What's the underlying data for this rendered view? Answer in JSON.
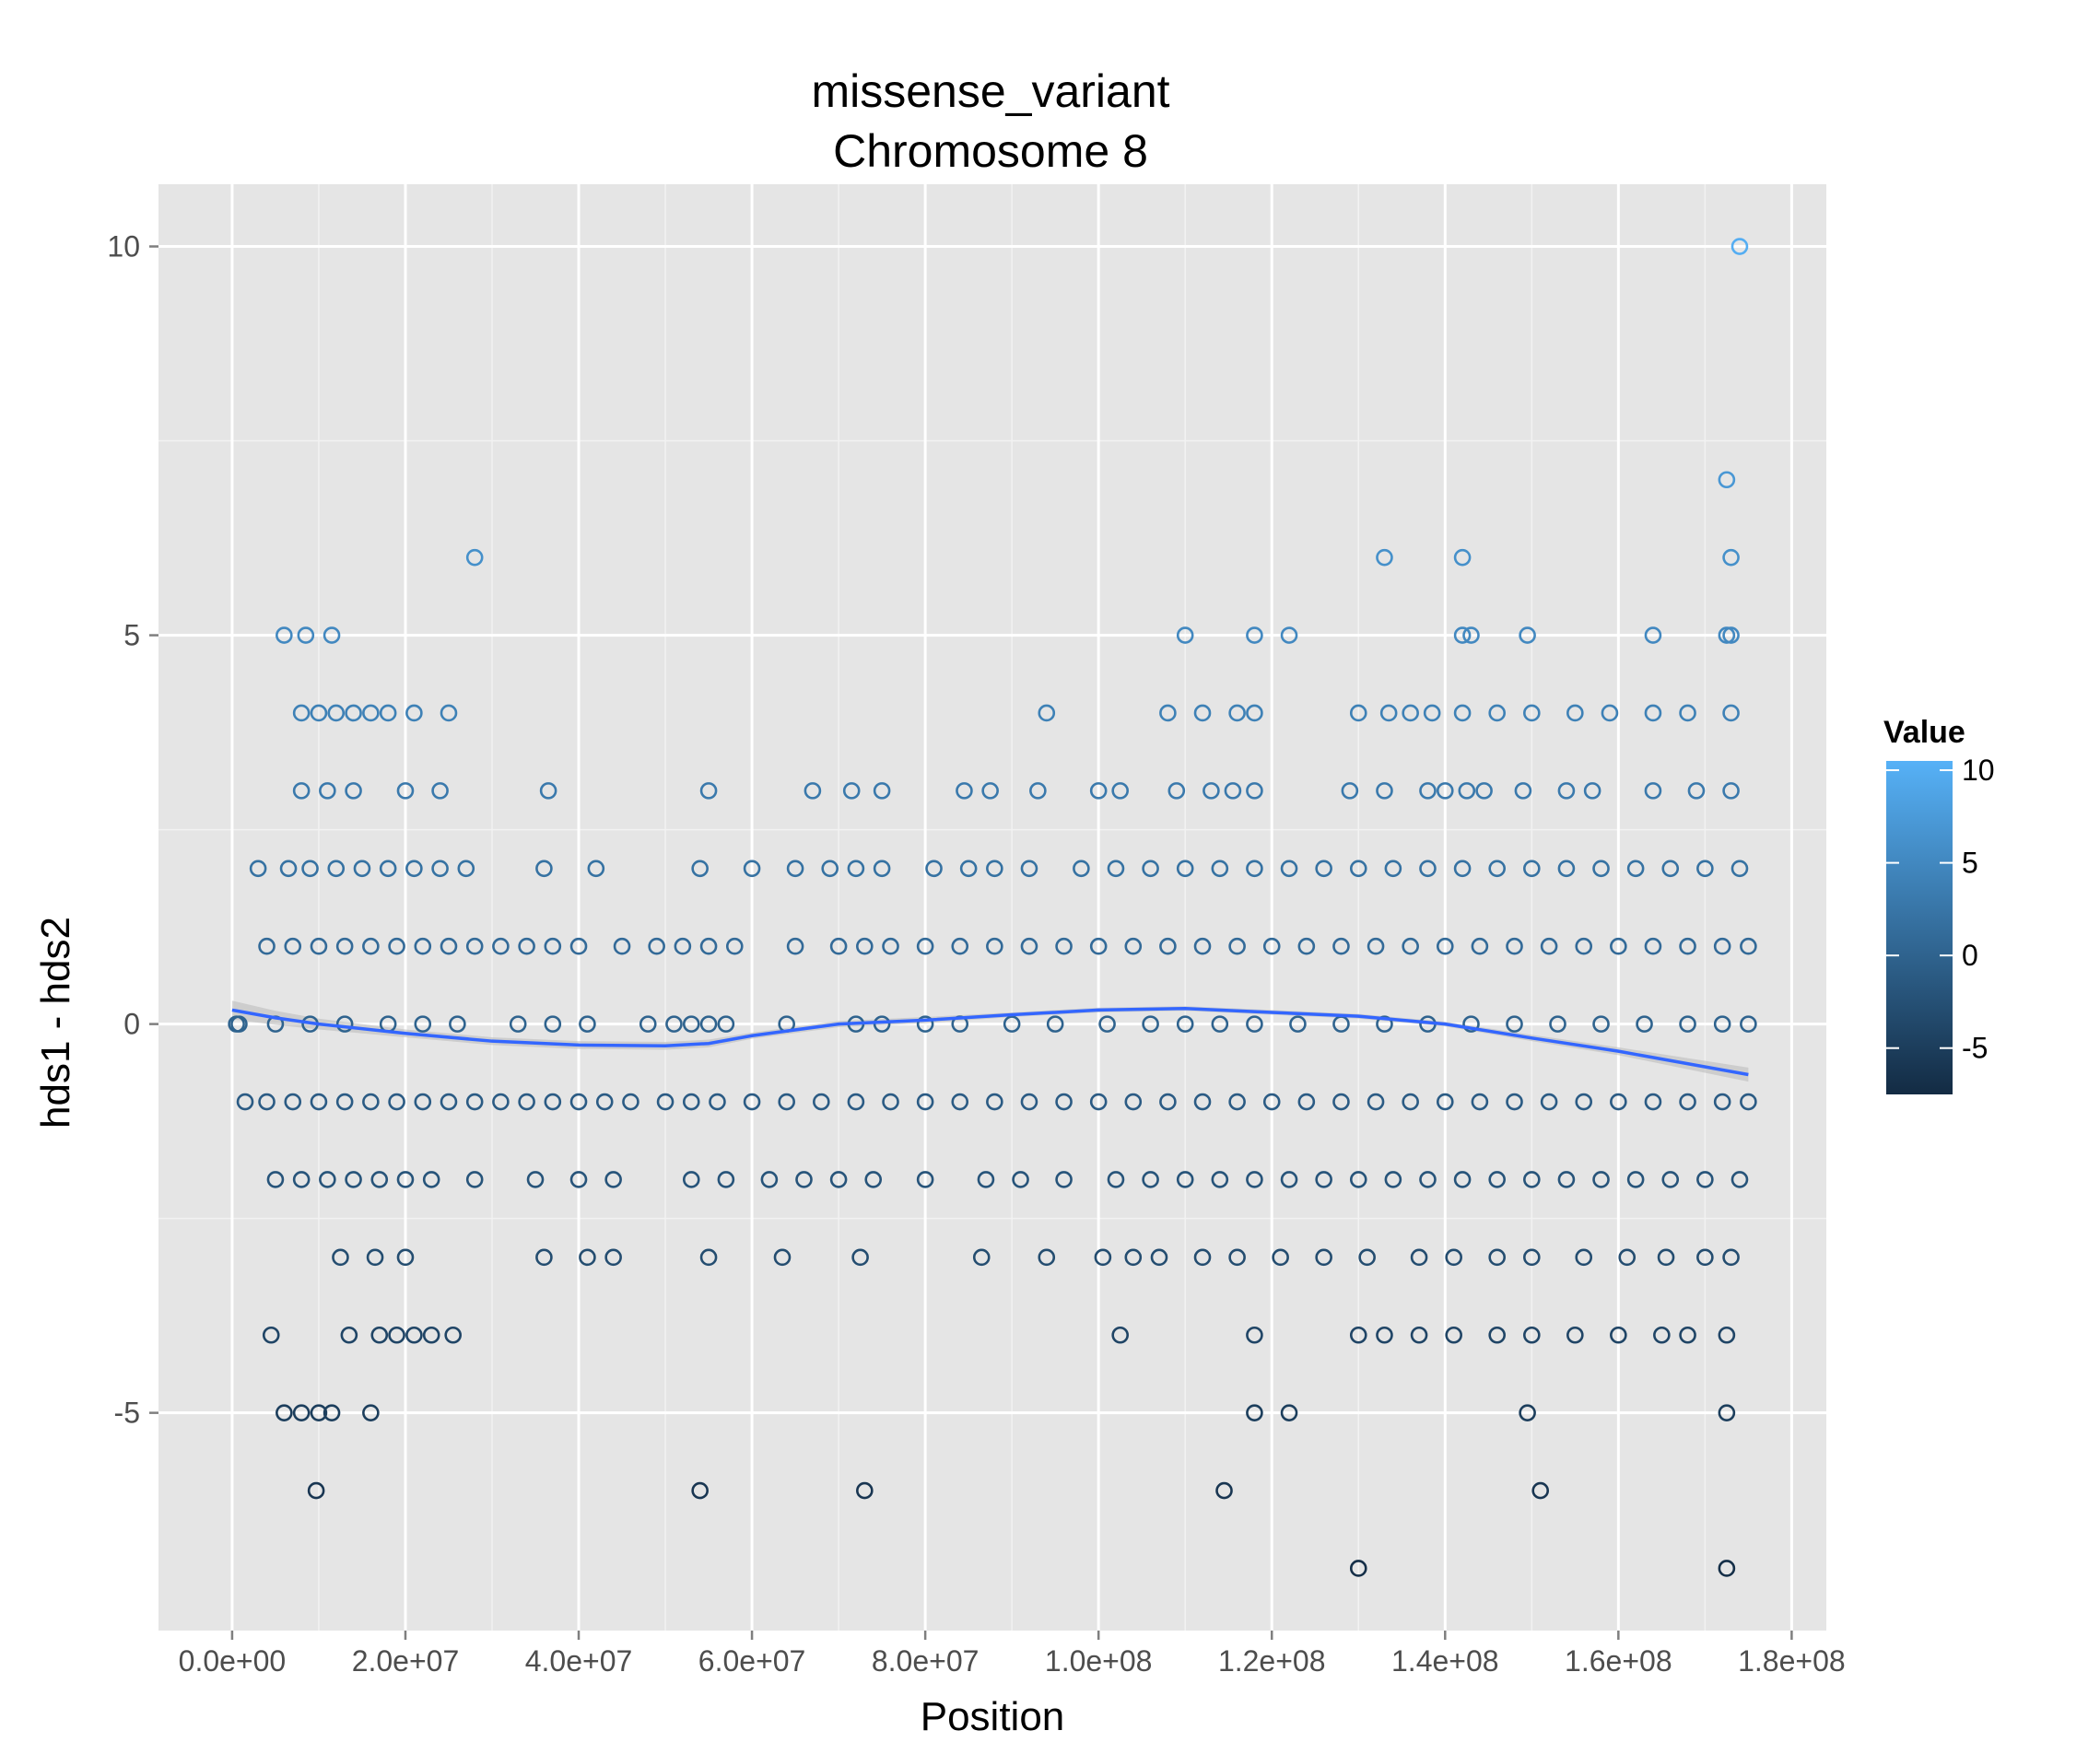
{
  "chart_data": {
    "type": "scatter",
    "title": "missense_variant",
    "subtitle": "Chromosome 8",
    "xlabel": "Position",
    "ylabel": "hds1 - hds2",
    "xlim": [
      -8500000,
      184000000
    ],
    "ylim": [
      -7.8,
      10.8
    ],
    "x_ticks": [
      0,
      20000000,
      40000000,
      60000000,
      80000000,
      100000000,
      120000000,
      140000000,
      160000000,
      180000000
    ],
    "x_tick_labels": [
      "0.0e+00",
      "2.0e+07",
      "4.0e+07",
      "6.0e+07",
      "8.0e+07",
      "1.0e+08",
      "1.2e+08",
      "1.4e+08",
      "1.6e+08",
      "1.8e+08"
    ],
    "y_ticks": [
      -5,
      0,
      5,
      10
    ],
    "y_tick_labels": [
      "-5",
      "0",
      "5",
      "10"
    ],
    "grid": true,
    "background": "#e5e5e5",
    "colors": {
      "low": "#132b43",
      "high": "#56b1f7",
      "smooth": "#3366ff",
      "ribbon": "#bdbdbd"
    },
    "legend": {
      "title": "Value",
      "position": "right",
      "range": [
        -7.5,
        10.5
      ],
      "breaks": [
        10,
        5,
        0,
        -5
      ],
      "labels": [
        "10",
        "5",
        "0",
        "-5"
      ]
    },
    "smooth": {
      "x": [
        0,
        5000000,
        10000000,
        20000000,
        30000000,
        40000000,
        50000000,
        55000000,
        60000000,
        70000000,
        80000000,
        90000000,
        100000000,
        110000000,
        120000000,
        130000000,
        140000000,
        150000000,
        160000000,
        175000000
      ],
      "y": [
        0.18,
        0.08,
        0.0,
        -0.12,
        -0.22,
        -0.27,
        -0.28,
        -0.25,
        -0.15,
        0.0,
        0.05,
        0.12,
        0.18,
        0.2,
        0.15,
        0.1,
        0.0,
        -0.18,
        -0.35,
        -0.65
      ],
      "se": [
        0.12,
        0.09,
        0.07,
        0.05,
        0.05,
        0.05,
        0.05,
        0.05,
        0.04,
        0.04,
        0.04,
        0.03,
        0.03,
        0.03,
        0.03,
        0.03,
        0.03,
        0.04,
        0.05,
        0.09
      ]
    },
    "series": [
      {
        "x": [
          500000,
          800000,
          5000000,
          9000000,
          13000000,
          18000000,
          22000000,
          26000000,
          33000000,
          37000000,
          41000000,
          48000000,
          51000000,
          53000000,
          55000000,
          57000000,
          64000000,
          72000000,
          75000000,
          80000000,
          84000000,
          90000000,
          95000000,
          101000000,
          106000000,
          110000000,
          114000000,
          118000000,
          123000000,
          128000000,
          133000000,
          138000000,
          143000000,
          148000000,
          153000000,
          158000000,
          163000000,
          168000000,
          172000000,
          175000000
        ],
        "y": [
          0,
          0,
          0,
          0,
          0,
          0,
          0,
          0,
          0,
          0,
          0,
          0,
          0,
          0,
          0,
          0,
          0,
          0,
          0,
          0,
          0,
          0,
          0,
          0,
          0,
          0,
          0,
          0,
          0,
          0,
          0,
          0,
          0,
          0,
          0,
          0,
          0,
          0,
          0,
          0
        ]
      },
      {
        "x": [
          4000000,
          7000000,
          10000000,
          13000000,
          16000000,
          19000000,
          22000000,
          25000000,
          28000000,
          31000000,
          34000000,
          37000000,
          40000000,
          45000000,
          49000000,
          52000000,
          55000000,
          58000000,
          65000000,
          70000000,
          73000000,
          76000000,
          80000000,
          84000000,
          88000000,
          92000000,
          96000000,
          100000000,
          104000000,
          108000000,
          112000000,
          116000000,
          120000000,
          124000000,
          128000000,
          132000000,
          136000000,
          140000000,
          144000000,
          148000000,
          152000000,
          156000000,
          160000000,
          164000000,
          168000000,
          172000000,
          175000000
        ],
        "y": [
          1,
          1,
          1,
          1,
          1,
          1,
          1,
          1,
          1,
          1,
          1,
          1,
          1,
          1,
          1,
          1,
          1,
          1,
          1,
          1,
          1,
          1,
          1,
          1,
          1,
          1,
          1,
          1,
          1,
          1,
          1,
          1,
          1,
          1,
          1,
          1,
          1,
          1,
          1,
          1,
          1,
          1,
          1,
          1,
          1,
          1,
          1
        ]
      },
      {
        "x": [
          1500000,
          4000000,
          7000000,
          10000000,
          13000000,
          16000000,
          19000000,
          22000000,
          25000000,
          28000000,
          31000000,
          34000000,
          37000000,
          40000000,
          43000000,
          46000000,
          50000000,
          53000000,
          56000000,
          60000000,
          64000000,
          68000000,
          72000000,
          76000000,
          80000000,
          84000000,
          88000000,
          92000000,
          96000000,
          100000000,
          104000000,
          108000000,
          112000000,
          116000000,
          120000000,
          124000000,
          128000000,
          132000000,
          136000000,
          140000000,
          144000000,
          148000000,
          152000000,
          156000000,
          160000000,
          164000000,
          168000000,
          172000000,
          175000000
        ],
        "y": [
          -1,
          -1,
          -1,
          -1,
          -1,
          -1,
          -1,
          -1,
          -1,
          -1,
          -1,
          -1,
          -1,
          -1,
          -1,
          -1,
          -1,
          -1,
          -1,
          -1,
          -1,
          -1,
          -1,
          -1,
          -1,
          -1,
          -1,
          -1,
          -1,
          -1,
          -1,
          -1,
          -1,
          -1,
          -1,
          -1,
          -1,
          -1,
          -1,
          -1,
          -1,
          -1,
          -1,
          -1,
          -1,
          -1,
          -1,
          -1,
          -1
        ]
      },
      {
        "x": [
          3000000,
          6500000,
          9000000,
          12000000,
          15000000,
          18000000,
          21000000,
          24000000,
          27000000,
          36000000,
          42000000,
          54000000,
          60000000,
          65000000,
          69000000,
          72000000,
          75000000,
          81000000,
          85000000,
          88000000,
          92000000,
          98000000,
          102000000,
          106000000,
          110000000,
          114000000,
          118000000,
          122000000,
          126000000,
          130000000,
          134000000,
          138000000,
          142000000,
          146000000,
          150000000,
          154000000,
          158000000,
          162000000,
          166000000,
          170000000,
          174000000
        ],
        "y": [
          2,
          2,
          2,
          2,
          2,
          2,
          2,
          2,
          2,
          2,
          2,
          2,
          2,
          2,
          2,
          2,
          2,
          2,
          2,
          2,
          2,
          2,
          2,
          2,
          2,
          2,
          2,
          2,
          2,
          2,
          2,
          2,
          2,
          2,
          2,
          2,
          2,
          2,
          2,
          2,
          2
        ]
      },
      {
        "x": [
          5000000,
          8000000,
          11000000,
          14000000,
          17000000,
          20000000,
          23000000,
          28000000,
          35000000,
          40000000,
          44000000,
          53000000,
          57000000,
          62000000,
          66000000,
          70000000,
          74000000,
          80000000,
          87000000,
          91000000,
          96000000,
          102000000,
          106000000,
          110000000,
          114000000,
          118000000,
          122000000,
          126000000,
          130000000,
          134000000,
          138000000,
          142000000,
          146000000,
          150000000,
          154000000,
          158000000,
          162000000,
          166000000,
          170000000,
          174000000
        ],
        "y": [
          -2,
          -2,
          -2,
          -2,
          -2,
          -2,
          -2,
          -2,
          -2,
          -2,
          -2,
          -2,
          -2,
          -2,
          -2,
          -2,
          -2,
          -2,
          -2,
          -2,
          -2,
          -2,
          -2,
          -2,
          -2,
          -2,
          -2,
          -2,
          -2,
          -2,
          -2,
          -2,
          -2,
          -2,
          -2,
          -2,
          -2,
          -2,
          -2,
          -2
        ]
      },
      {
        "x": [
          8000000,
          11000000,
          14000000,
          20000000,
          24000000,
          36500000,
          55000000,
          67000000,
          71500000,
          75000000,
          84500000,
          87500000,
          93000000,
          100000000,
          102500000,
          109000000,
          113000000,
          115500000,
          118000000,
          129000000,
          133000000,
          138000000,
          140000000,
          142500000,
          144500000,
          149000000,
          154000000,
          157000000,
          164000000,
          169000000,
          173000000
        ],
        "y": [
          3,
          3,
          3,
          3,
          3,
          3,
          3,
          3,
          3,
          3,
          3,
          3,
          3,
          3,
          3,
          3,
          3,
          3,
          3,
          3,
          3,
          3,
          3,
          3,
          3,
          3,
          3,
          3,
          3,
          3,
          3
        ]
      },
      {
        "x": [
          12500000,
          16500000,
          20000000,
          36000000,
          41000000,
          44000000,
          55000000,
          63500000,
          72500000,
          86500000,
          94000000,
          100500000,
          104000000,
          107000000,
          112000000,
          116000000,
          121000000,
          126000000,
          131000000,
          137000000,
          141000000,
          146000000,
          150000000,
          156000000,
          161000000,
          165500000,
          170000000,
          173000000
        ],
        "y": [
          -3,
          -3,
          -3,
          -3,
          -3,
          -3,
          -3,
          -3,
          -3,
          -3,
          -3,
          -3,
          -3,
          -3,
          -3,
          -3,
          -3,
          -3,
          -3,
          -3,
          -3,
          -3,
          -3,
          -3,
          -3,
          -3,
          -3,
          -3
        ]
      },
      {
        "x": [
          8000000,
          10000000,
          12000000,
          14000000,
          16000000,
          18000000,
          21000000,
          25000000,
          94000000,
          108000000,
          112000000,
          116000000,
          118000000,
          130000000,
          133500000,
          136000000,
          138500000,
          142000000,
          146000000,
          150000000,
          155000000,
          159000000,
          164000000,
          168000000,
          173000000
        ],
        "y": [
          4,
          4,
          4,
          4,
          4,
          4,
          4,
          4,
          4,
          4,
          4,
          4,
          4,
          4,
          4,
          4,
          4,
          4,
          4,
          4,
          4,
          4,
          4,
          4,
          4
        ]
      },
      {
        "x": [
          4500000,
          13500000,
          17000000,
          19000000,
          21000000,
          23000000,
          25500000,
          102500000,
          118000000,
          130000000,
          133000000,
          137000000,
          141000000,
          146000000,
          150000000,
          155000000,
          160000000,
          165000000,
          168000000,
          172500000
        ],
        "y": [
          -4,
          -4,
          -4,
          -4,
          -4,
          -4,
          -4,
          -4,
          -4,
          -4,
          -4,
          -4,
          -4,
          -4,
          -4,
          -4,
          -4,
          -4,
          -4,
          -4
        ]
      },
      {
        "x": [
          6000000,
          8500000,
          11500000,
          110000000,
          118000000,
          122000000,
          142000000,
          143000000,
          149500000,
          164000000,
          172500000,
          173000000
        ],
        "y": [
          5,
          5,
          5,
          5,
          5,
          5,
          5,
          5,
          5,
          5,
          5,
          5
        ]
      },
      {
        "x": [
          6000000,
          8000000,
          10000000,
          11500000,
          16000000,
          118000000,
          122000000,
          149500000,
          172500000
        ],
        "y": [
          -5,
          -5,
          -5,
          -5,
          -5,
          -5,
          -5,
          -5,
          -5
        ]
      },
      {
        "x": [
          28000000,
          133000000,
          142000000,
          173000000
        ],
        "y": [
          6,
          6,
          6,
          6
        ]
      },
      {
        "x": [
          9700000,
          54000000,
          73000000,
          114500000,
          151000000
        ],
        "y": [
          -6,
          -6,
          -6,
          -6,
          -6
        ]
      },
      {
        "x": [
          172500000
        ],
        "y": [
          7
        ]
      },
      {
        "x": [
          130000000,
          172500000
        ],
        "y": [
          -7,
          -7
        ]
      },
      {
        "x": [
          174000000
        ],
        "y": [
          10
        ]
      }
    ]
  }
}
